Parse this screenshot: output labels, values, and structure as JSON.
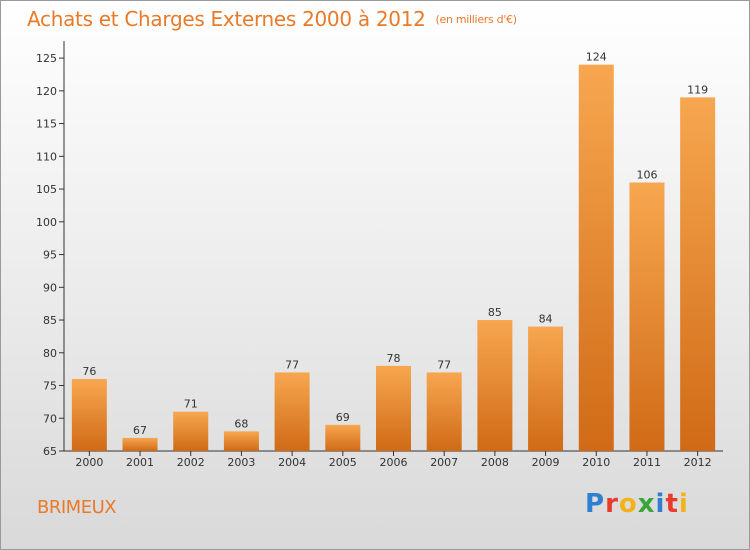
{
  "title": "Achats et Charges Externes 2000 à 2012",
  "unit": "(en milliers d'€)",
  "commune": "BRIMEUX",
  "brand_letters": [
    "P",
    "r",
    "o",
    "x",
    "i",
    "t",
    "i"
  ],
  "colors": {
    "bar_top": "#f7a750",
    "bar_bottom": "#d06a16",
    "title": "#e87a2a",
    "axis": "#333333"
  },
  "chart_data": {
    "type": "bar",
    "title": "Achats et Charges Externes 2000 à 2012",
    "subtitle": "(en milliers d'€)",
    "categories": [
      "2000",
      "2001",
      "2002",
      "2003",
      "2004",
      "2005",
      "2006",
      "2007",
      "2008",
      "2009",
      "2010",
      "2011",
      "2012"
    ],
    "values": [
      76,
      67,
      71,
      68,
      77,
      69,
      78,
      77,
      85,
      84,
      124,
      106,
      119
    ],
    "y_ticks": [
      65,
      70,
      75,
      80,
      85,
      90,
      95,
      100,
      105,
      110,
      115,
      120,
      125
    ],
    "ylim": [
      65,
      127
    ],
    "xlabel": "",
    "ylabel": "",
    "grid": false,
    "legend": "none"
  }
}
